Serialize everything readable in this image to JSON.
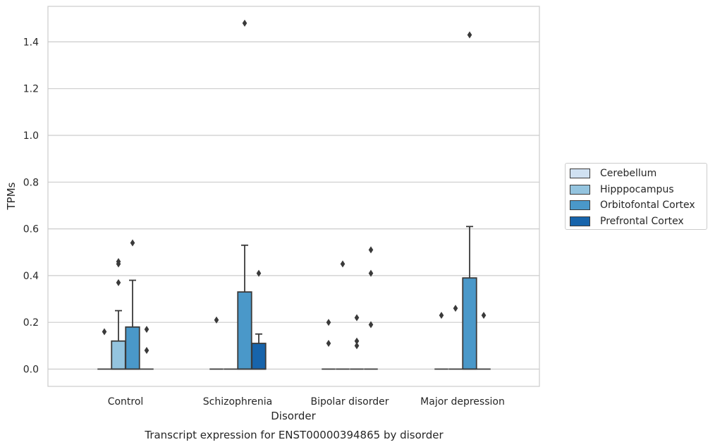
{
  "chart_data": {
    "type": "box",
    "title": "",
    "caption": "Transcript expression for ENST00000394865 by disorder",
    "xlabel": "Disorder",
    "ylabel": "TPMs",
    "ylim": [
      -0.07,
      1.56
    ],
    "yticks": [
      0.0,
      0.2,
      0.4,
      0.6,
      0.8,
      1.0,
      1.2,
      1.4
    ],
    "ytick_labels": [
      "0.0",
      "0.2",
      "0.4",
      "0.6",
      "0.8",
      "1.0",
      "1.2",
      "1.4"
    ],
    "categories": [
      "Control",
      "Schizophrenia",
      "Bipolar disorder",
      "Major depression"
    ],
    "grid": "horizontal",
    "legend_position": "right-center",
    "series": [
      {
        "name": "Cerebellum",
        "color": "#d0e1f2",
        "boxes": [
          {
            "q1": 0,
            "median": 0,
            "q3": 0,
            "whislo": 0,
            "whishi": 0,
            "fliers": [
              0.16
            ]
          },
          {
            "q1": 0,
            "median": 0,
            "q3": 0,
            "whislo": 0,
            "whishi": 0,
            "fliers": [
              0.21
            ]
          },
          {
            "q1": 0,
            "median": 0,
            "q3": 0,
            "whislo": 0,
            "whishi": 0,
            "fliers": [
              0.2,
              0.11
            ]
          },
          {
            "q1": 0,
            "median": 0,
            "q3": 0,
            "whislo": 0,
            "whishi": 0,
            "fliers": [
              0.23
            ]
          }
        ]
      },
      {
        "name": "Hipppocampus",
        "color": "#94c4df",
        "boxes": [
          {
            "q1": 0,
            "median": 0,
            "q3": 0.12,
            "whislo": 0,
            "whishi": 0.25,
            "fliers": [
              0.46,
              0.45,
              0.37
            ]
          },
          {
            "q1": 0,
            "median": 0,
            "q3": 0,
            "whislo": 0,
            "whishi": 0,
            "fliers": []
          },
          {
            "q1": 0,
            "median": 0,
            "q3": 0,
            "whislo": 0,
            "whishi": 0,
            "fliers": [
              0.45
            ]
          },
          {
            "q1": 0,
            "median": 0,
            "q3": 0,
            "whislo": 0,
            "whishi": 0,
            "fliers": [
              0.26
            ]
          }
        ]
      },
      {
        "name": "Orbitofontal Cortex",
        "color": "#4a98c9",
        "boxes": [
          {
            "q1": 0,
            "median": 0,
            "q3": 0.18,
            "whislo": 0,
            "whishi": 0.38,
            "fliers": [
              0.54
            ]
          },
          {
            "q1": 0,
            "median": 0,
            "q3": 0.33,
            "whislo": 0,
            "whishi": 0.53,
            "fliers": [
              1.48
            ]
          },
          {
            "q1": 0,
            "median": 0,
            "q3": 0,
            "whislo": 0,
            "whishi": 0,
            "fliers": [
              0.22,
              0.12,
              0.1
            ]
          },
          {
            "q1": 0,
            "median": 0,
            "q3": 0.39,
            "whislo": 0,
            "whishi": 0.61,
            "fliers": [
              1.43
            ]
          }
        ]
      },
      {
        "name": "Prefrontal Cortex",
        "color": "#1764ab",
        "boxes": [
          {
            "q1": 0,
            "median": 0,
            "q3": 0,
            "whislo": 0,
            "whishi": 0,
            "fliers": [
              0.17,
              0.08
            ]
          },
          {
            "q1": 0,
            "median": 0,
            "q3": 0.11,
            "whislo": 0,
            "whishi": 0.15,
            "fliers": [
              0.41
            ]
          },
          {
            "q1": 0,
            "median": 0,
            "q3": 0,
            "whislo": 0,
            "whishi": 0,
            "fliers": [
              0.51,
              0.41,
              0.19
            ]
          },
          {
            "q1": 0,
            "median": 0,
            "q3": 0,
            "whislo": 0,
            "whishi": 0,
            "fliers": [
              0.23
            ]
          }
        ]
      }
    ]
  }
}
